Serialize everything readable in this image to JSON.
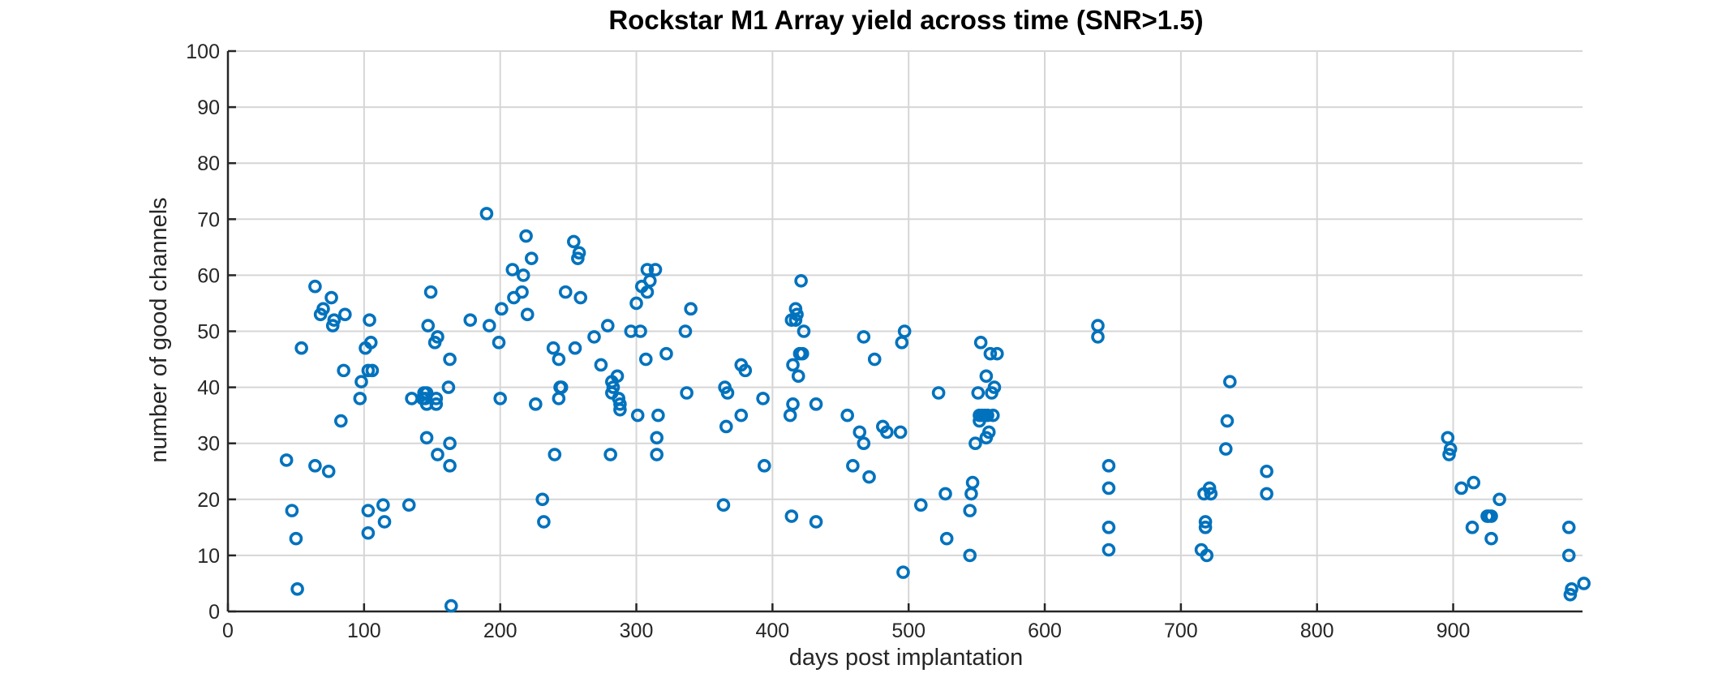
{
  "chart_data": {
    "type": "scatter",
    "title": "Rockstar M1 Array yield across time (SNR>1.5)",
    "xlabel": "days post implantation",
    "ylabel": "number of good channels",
    "xlim": [
      0,
      995
    ],
    "ylim": [
      0,
      100
    ],
    "xticks": [
      0,
      100,
      200,
      300,
      400,
      500,
      600,
      700,
      800,
      900
    ],
    "yticks": [
      0,
      10,
      20,
      30,
      40,
      50,
      60,
      70,
      80,
      90,
      100
    ],
    "grid": true,
    "marker": "circle-open",
    "color": "#0072BD",
    "series": [
      {
        "points": [
          [
            43,
            27
          ],
          [
            47,
            18
          ],
          [
            50,
            13
          ],
          [
            51,
            4
          ],
          [
            54,
            47
          ],
          [
            64,
            58
          ],
          [
            64,
            26
          ],
          [
            68,
            53
          ],
          [
            70,
            54
          ],
          [
            74,
            25
          ],
          [
            76,
            56
          ],
          [
            77,
            51
          ],
          [
            78,
            52
          ],
          [
            83,
            34
          ],
          [
            85,
            43
          ],
          [
            86,
            53
          ],
          [
            97,
            38
          ],
          [
            98,
            41
          ],
          [
            101,
            47
          ],
          [
            103,
            43
          ],
          [
            103,
            18
          ],
          [
            103,
            14
          ],
          [
            104,
            52
          ],
          [
            105,
            48
          ],
          [
            106,
            43
          ],
          [
            114,
            19
          ],
          [
            115,
            16
          ],
          [
            133,
            19
          ],
          [
            135,
            38
          ],
          [
            143,
            38
          ],
          [
            144,
            39
          ],
          [
            145,
            38
          ],
          [
            146,
            39
          ],
          [
            146,
            37
          ],
          [
            146,
            31
          ],
          [
            147,
            51
          ],
          [
            149,
            57
          ],
          [
            152,
            48
          ],
          [
            153,
            38
          ],
          [
            153,
            37
          ],
          [
            154,
            28
          ],
          [
            154,
            49
          ],
          [
            162,
            40
          ],
          [
            163,
            45
          ],
          [
            163,
            26
          ],
          [
            163,
            30
          ],
          [
            164,
            1
          ],
          [
            178,
            52
          ],
          [
            190,
            71
          ],
          [
            192,
            51
          ],
          [
            199,
            48
          ],
          [
            200,
            38
          ],
          [
            201,
            54
          ],
          [
            209,
            61
          ],
          [
            210,
            56
          ],
          [
            216,
            57
          ],
          [
            217,
            60
          ],
          [
            219,
            67
          ],
          [
            220,
            53
          ],
          [
            223,
            63
          ],
          [
            226,
            37
          ],
          [
            231,
            20
          ],
          [
            232,
            16
          ],
          [
            239,
            47
          ],
          [
            240,
            28
          ],
          [
            243,
            38
          ],
          [
            243,
            45
          ],
          [
            244,
            40
          ],
          [
            245,
            40
          ],
          [
            248,
            57
          ],
          [
            254,
            66
          ],
          [
            255,
            47
          ],
          [
            257,
            63
          ],
          [
            258,
            64
          ],
          [
            259,
            56
          ],
          [
            269,
            49
          ],
          [
            274,
            44
          ],
          [
            279,
            51
          ],
          [
            281,
            28
          ],
          [
            282,
            39
          ],
          [
            282,
            41
          ],
          [
            283,
            40
          ],
          [
            286,
            42
          ],
          [
            287,
            38
          ],
          [
            288,
            37
          ],
          [
            288,
            36
          ],
          [
            296,
            50
          ],
          [
            300,
            55
          ],
          [
            301,
            35
          ],
          [
            303,
            50
          ],
          [
            304,
            58
          ],
          [
            307,
            45
          ],
          [
            308,
            61
          ],
          [
            308,
            57
          ],
          [
            310,
            59
          ],
          [
            314,
            61
          ],
          [
            315,
            31
          ],
          [
            315,
            28
          ],
          [
            316,
            35
          ],
          [
            322,
            46
          ],
          [
            336,
            50
          ],
          [
            337,
            39
          ],
          [
            340,
            54
          ],
          [
            364,
            19
          ],
          [
            365,
            40
          ],
          [
            366,
            33
          ],
          [
            367,
            39
          ],
          [
            377,
            35
          ],
          [
            377,
            44
          ],
          [
            380,
            43
          ],
          [
            393,
            38
          ],
          [
            394,
            26
          ],
          [
            413,
            35
          ],
          [
            414,
            17
          ],
          [
            414,
            52
          ],
          [
            415,
            44
          ],
          [
            415,
            37
          ],
          [
            417,
            54
          ],
          [
            417,
            52
          ],
          [
            418,
            53
          ],
          [
            419,
            42
          ],
          [
            420,
            46
          ],
          [
            421,
            59
          ],
          [
            422,
            46
          ],
          [
            423,
            50
          ],
          [
            432,
            37
          ],
          [
            432,
            16
          ],
          [
            455,
            35
          ],
          [
            459,
            26
          ],
          [
            464,
            32
          ],
          [
            467,
            30
          ],
          [
            467,
            49
          ],
          [
            471,
            24
          ],
          [
            475,
            45
          ],
          [
            481,
            33
          ],
          [
            484,
            32
          ],
          [
            494,
            32
          ],
          [
            495,
            48
          ],
          [
            496,
            7
          ],
          [
            497,
            50
          ],
          [
            509,
            19
          ],
          [
            522,
            39
          ],
          [
            527,
            21
          ],
          [
            528,
            13
          ],
          [
            545,
            18
          ],
          [
            545,
            10
          ],
          [
            546,
            21
          ],
          [
            547,
            23
          ],
          [
            549,
            30
          ],
          [
            551,
            39
          ],
          [
            552,
            35
          ],
          [
            552,
            34
          ],
          [
            553,
            48
          ],
          [
            554,
            35
          ],
          [
            556,
            35
          ],
          [
            557,
            42
          ],
          [
            557,
            31
          ],
          [
            558,
            35
          ],
          [
            559,
            32
          ],
          [
            560,
            46
          ],
          [
            561,
            39
          ],
          [
            562,
            35
          ],
          [
            563,
            40
          ],
          [
            565,
            46
          ],
          [
            639,
            51
          ],
          [
            639,
            49
          ],
          [
            647,
            26
          ],
          [
            647,
            22
          ],
          [
            647,
            15
          ],
          [
            647,
            11
          ],
          [
            715,
            11
          ],
          [
            717,
            21
          ],
          [
            718,
            16
          ],
          [
            718,
            15
          ],
          [
            719,
            10
          ],
          [
            721,
            22
          ],
          [
            722,
            21
          ],
          [
            733,
            29
          ],
          [
            734,
            34
          ],
          [
            736,
            41
          ],
          [
            763,
            25
          ],
          [
            763,
            21
          ],
          [
            896,
            31
          ],
          [
            897,
            28
          ],
          [
            898,
            29
          ],
          [
            906,
            22
          ],
          [
            914,
            15
          ],
          [
            915,
            23
          ],
          [
            925,
            17
          ],
          [
            926,
            17
          ],
          [
            928,
            17
          ],
          [
            928,
            13
          ],
          [
            934,
            20
          ],
          [
            985,
            15
          ],
          [
            985,
            10
          ],
          [
            986,
            3
          ],
          [
            987,
            4
          ],
          [
            996,
            5
          ]
        ]
      }
    ]
  }
}
